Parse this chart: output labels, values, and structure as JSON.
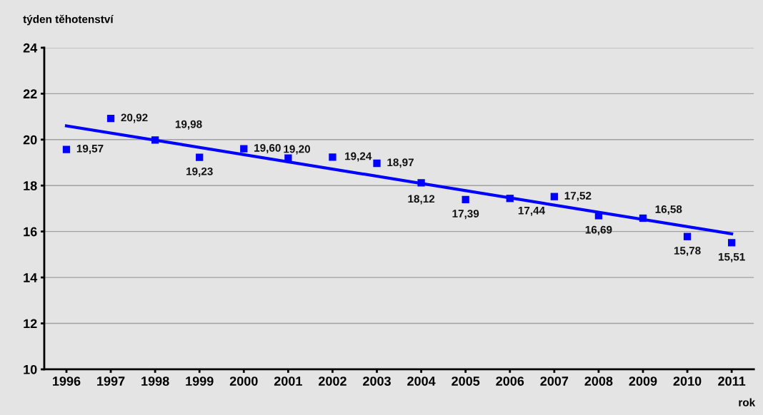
{
  "chart_data": {
    "type": "scatter",
    "ylabel": "týden těhotenství",
    "xlabel": "rok",
    "categories": [
      "1996",
      "1997",
      "1998",
      "1999",
      "2000",
      "2001",
      "2002",
      "2003",
      "2004",
      "2005",
      "2006",
      "2007",
      "2008",
      "2009",
      "2010",
      "2011"
    ],
    "series": [
      {
        "color": "#0000ff",
        "marker": "square",
        "values": [
          19.57,
          20.92,
          19.98,
          19.23,
          19.6,
          19.2,
          19.24,
          18.97,
          18.12,
          17.39,
          17.44,
          17.52,
          16.69,
          16.58,
          15.78,
          15.51
        ],
        "value_labels": [
          "19,57",
          "20,92",
          "19,98",
          "19,23",
          "19,60",
          "19,20",
          "19,24",
          "18,97",
          "18,12",
          "17,39",
          "17,44",
          "17,52",
          "16,69",
          "16,58",
          "15,78",
          "15,51"
        ]
      },
      {
        "type": "line",
        "color": "#0000ff",
        "values": [
          20.6,
          null,
          null,
          null,
          null,
          null,
          null,
          null,
          null,
          null,
          null,
          null,
          null,
          null,
          null,
          15.9
        ]
      }
    ],
    "ylim": [
      10,
      24
    ],
    "yticks": [
      10,
      12,
      14,
      16,
      18,
      20,
      22,
      24
    ],
    "grid": "y",
    "legend": false
  }
}
